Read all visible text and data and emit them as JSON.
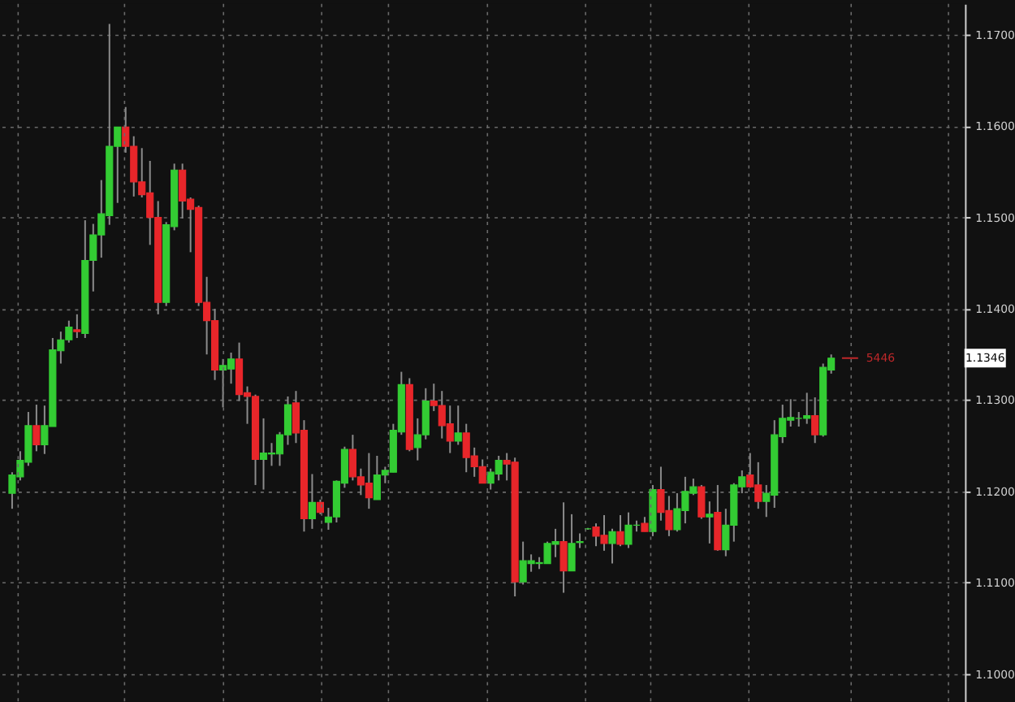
{
  "chart_data": {
    "type": "candlestick",
    "categories": [
      null,
      null,
      null,
      null,
      null,
      null,
      null,
      null,
      null,
      null,
      null,
      null,
      null,
      null,
      null,
      null,
      null,
      null,
      null,
      null,
      null,
      null,
      null,
      null,
      null,
      null,
      null,
      null,
      null,
      null,
      null,
      null,
      null,
      null,
      null,
      null,
      null,
      null,
      null,
      null,
      null,
      null,
      null,
      null,
      null,
      null,
      null,
      null,
      null,
      null,
      null,
      null,
      null,
      null,
      null,
      null,
      null,
      null,
      null,
      null,
      null,
      null,
      null,
      null,
      null,
      null,
      null,
      null,
      null,
      null,
      null,
      null,
      null,
      null,
      null,
      null,
      null,
      null,
      null,
      null,
      null,
      null,
      null,
      null,
      null,
      null,
      null,
      null,
      null,
      null,
      null,
      null,
      null,
      null,
      null,
      null,
      null,
      null,
      null,
      null,
      null,
      null,
      null,
      null,
      null,
      null,
      null,
      null,
      null,
      null,
      null,
      null,
      null,
      null,
      null,
      null,
      null
    ],
    "ohlc": [
      [
        1.1198,
        1.1221,
        1.1181,
        1.1218
      ],
      [
        1.1216,
        1.1244,
        1.1212,
        1.1234
      ],
      [
        1.1232,
        1.1287,
        1.1228,
        1.1272
      ],
      [
        1.1272,
        1.1295,
        1.1244,
        1.1251
      ],
      [
        1.1251,
        1.1294,
        1.1241,
        1.1272
      ],
      [
        1.1271,
        1.1368,
        1.1271,
        1.1355
      ],
      [
        1.1354,
        1.1375,
        1.134,
        1.1366
      ],
      [
        1.1366,
        1.1387,
        1.1363,
        1.138
      ],
      [
        1.1377,
        1.1394,
        1.1368,
        1.1375
      ],
      [
        1.1373,
        1.1497,
        1.1368,
        1.1453
      ],
      [
        1.1453,
        1.1493,
        1.1419,
        1.1481
      ],
      [
        1.1481,
        1.1541,
        1.1456,
        1.1504
      ],
      [
        1.1502,
        1.1712,
        1.1492,
        1.1578
      ],
      [
        1.1578,
        1.1599,
        1.1516,
        1.1599
      ],
      [
        1.1599,
        1.1621,
        1.1571,
        1.1578
      ],
      [
        1.1578,
        1.1589,
        1.1523,
        1.1539
      ],
      [
        1.1539,
        1.1576,
        1.1522,
        1.1525
      ],
      [
        1.1527,
        1.1562,
        1.147,
        1.15
      ],
      [
        1.15,
        1.1518,
        1.1394,
        1.1407
      ],
      [
        1.1407,
        1.1495,
        1.1403,
        1.1492
      ],
      [
        1.149,
        1.1559,
        1.1486,
        1.1552
      ],
      [
        1.1552,
        1.1559,
        1.1499,
        1.1518
      ],
      [
        1.152,
        1.1522,
        1.1462,
        1.1509
      ],
      [
        1.1511,
        1.1513,
        1.1403,
        1.1407
      ],
      [
        1.1407,
        1.1435,
        1.135,
        1.1387
      ],
      [
        1.1387,
        1.14,
        1.1322,
        1.1333
      ],
      [
        1.1333,
        1.1345,
        1.1292,
        1.1338
      ],
      [
        1.1334,
        1.1352,
        1.1318,
        1.1345
      ],
      [
        1.1345,
        1.1363,
        1.1299,
        1.1306
      ],
      [
        1.1308,
        1.1315,
        1.1274,
        1.1304
      ],
      [
        1.1304,
        1.1306,
        1.1207,
        1.1235
      ],
      [
        1.1235,
        1.128,
        1.1202,
        1.1242
      ],
      [
        1.1241,
        1.1253,
        1.1228,
        1.1242
      ],
      [
        1.1241,
        1.1265,
        1.1228,
        1.1262
      ],
      [
        1.1262,
        1.1304,
        1.1251,
        1.1295
      ],
      [
        1.1297,
        1.131,
        1.1253,
        1.1264
      ],
      [
        1.1267,
        1.1278,
        1.1156,
        1.117
      ],
      [
        1.117,
        1.1219,
        1.1159,
        1.1188
      ],
      [
        1.1188,
        1.1191,
        1.1175,
        1.1177
      ],
      [
        1.1166,
        1.1182,
        1.1158,
        1.1172
      ],
      [
        1.1172,
        1.1212,
        1.1166,
        1.1211
      ],
      [
        1.1209,
        1.1249,
        1.1204,
        1.1246
      ],
      [
        1.1246,
        1.1262,
        1.1212,
        1.1216
      ],
      [
        1.1216,
        1.1225,
        1.1196,
        1.1207
      ],
      [
        1.1209,
        1.1242,
        1.1181,
        1.1193
      ],
      [
        1.1191,
        1.1239,
        1.1191,
        1.1218
      ],
      [
        1.1218,
        1.1227,
        1.1209,
        1.1223
      ],
      [
        1.1221,
        1.1274,
        1.1221,
        1.1267
      ],
      [
        1.1265,
        1.1331,
        1.1262,
        1.1317
      ],
      [
        1.1317,
        1.1324,
        1.1244,
        1.1246
      ],
      [
        1.1248,
        1.128,
        1.1234,
        1.1262
      ],
      [
        1.1262,
        1.1313,
        1.1257,
        1.1299
      ],
      [
        1.1299,
        1.1318,
        1.1288,
        1.1294
      ],
      [
        1.1294,
        1.131,
        1.1258,
        1.1272
      ],
      [
        1.1274,
        1.1294,
        1.1242,
        1.1255
      ],
      [
        1.1255,
        1.1294,
        1.1251,
        1.1264
      ],
      [
        1.1264,
        1.1274,
        1.1221,
        1.1237
      ],
      [
        1.1239,
        1.1248,
        1.1216,
        1.1227
      ],
      [
        1.1227,
        1.1235,
        1.1209,
        1.1209
      ],
      [
        1.1209,
        1.1225,
        1.1202,
        1.1221
      ],
      [
        1.1219,
        1.1239,
        1.1212,
        1.1234
      ],
      [
        1.1234,
        1.1242,
        1.1212,
        1.123
      ],
      [
        1.1232,
        1.1237,
        1.1085,
        1.1101
      ],
      [
        1.1101,
        1.1145,
        1.1098,
        1.1124
      ],
      [
        1.1121,
        1.1131,
        1.1112,
        1.1124
      ],
      [
        1.1121,
        1.1128,
        1.1115,
        1.1122
      ],
      [
        1.1121,
        1.1145,
        1.1121,
        1.1143
      ],
      [
        1.1142,
        1.1159,
        1.1128,
        1.1145
      ],
      [
        1.1145,
        1.1188,
        1.1089,
        1.1113
      ],
      [
        1.1113,
        1.1175,
        1.1113,
        1.1143
      ],
      [
        1.1144,
        1.1154,
        1.1138,
        1.1145
      ],
      [
        1.1159,
        1.116,
        1.1158,
        1.1159
      ],
      [
        1.1161,
        1.1165,
        1.114,
        1.1151
      ],
      [
        1.1152,
        1.1174,
        1.1135,
        1.1143
      ],
      [
        1.1143,
        1.1159,
        1.1121,
        1.1156
      ],
      [
        1.1156,
        1.1174,
        1.114,
        1.1142
      ],
      [
        1.1142,
        1.1177,
        1.1138,
        1.1163
      ],
      [
        1.1163,
        1.1168,
        1.1156,
        1.1163
      ],
      [
        1.1165,
        1.1172,
        1.1156,
        1.1156
      ],
      [
        1.1156,
        1.1207,
        1.1151,
        1.1202
      ],
      [
        1.1202,
        1.1227,
        1.1168,
        1.1177
      ],
      [
        1.1179,
        1.1195,
        1.1151,
        1.1158
      ],
      [
        1.1158,
        1.1198,
        1.1156,
        1.1181
      ],
      [
        1.1179,
        1.1216,
        1.1165,
        1.12
      ],
      [
        1.1198,
        1.1214,
        1.1196,
        1.1205
      ],
      [
        1.1205,
        1.1207,
        1.117,
        1.1172
      ],
      [
        1.1172,
        1.1189,
        1.1143,
        1.1175
      ],
      [
        1.1177,
        1.1207,
        1.1135,
        1.1136
      ],
      [
        1.1136,
        1.1181,
        1.1129,
        1.1163
      ],
      [
        1.1163,
        1.1209,
        1.1145,
        1.1207
      ],
      [
        1.1205,
        1.1223,
        1.1198,
        1.1216
      ],
      [
        1.1218,
        1.1242,
        1.1204,
        1.1205
      ],
      [
        1.1207,
        1.1232,
        1.1181,
        1.1189
      ],
      [
        1.1189,
        1.1207,
        1.1172,
        1.1198
      ],
      [
        1.1196,
        1.1278,
        1.1182,
        1.1262
      ],
      [
        1.126,
        1.1295,
        1.1253,
        1.128
      ],
      [
        1.1278,
        1.1301,
        1.1271,
        1.1281
      ],
      [
        1.128,
        1.1287,
        1.1271,
        1.128
      ],
      [
        1.128,
        1.1308,
        1.1274,
        1.1283
      ],
      [
        1.1283,
        1.1303,
        1.1253,
        1.1262
      ],
      [
        1.1262,
        1.134,
        1.126,
        1.1336
      ],
      [
        1.1333,
        1.135,
        1.1329,
        1.1346
      ],
      null,
      null,
      null,
      null,
      null,
      null,
      null,
      null,
      null,
      null,
      null,
      null,
      null,
      null,
      null
    ],
    "colors": [
      "#33cc33",
      "#33cc33",
      "#33cc33",
      "#e8262a",
      "#33cc33",
      "#33cc33",
      "#33cc33",
      "#33cc33",
      "#e8262a",
      "#33cc33",
      "#33cc33",
      "#33cc33",
      "#33cc33",
      "#33cc33",
      "#e8262a",
      "#e8262a",
      "#e8262a",
      "#e8262a",
      "#e8262a",
      "#33cc33",
      "#33cc33",
      "#e8262a",
      "#e8262a",
      "#e8262a",
      "#e8262a",
      "#e8262a",
      "#33cc33",
      "#33cc33",
      "#e8262a",
      "#e8262a",
      "#e8262a",
      "#33cc33",
      "#33cc33",
      "#33cc33",
      "#33cc33",
      "#e8262a",
      "#e8262a",
      "#33cc33",
      "#e8262a",
      "#33cc33",
      "#33cc33",
      "#33cc33",
      "#e8262a",
      "#e8262a",
      "#e8262a",
      "#33cc33",
      "#33cc33",
      "#33cc33",
      "#33cc33",
      "#e8262a",
      "#33cc33",
      "#33cc33",
      "#e8262a",
      "#e8262a",
      "#e8262a",
      "#33cc33",
      "#e8262a",
      "#e8262a",
      "#e8262a",
      "#33cc33",
      "#33cc33",
      "#e8262a",
      "#e8262a",
      "#33cc33",
      "#33cc33",
      "#33cc33",
      "#33cc33",
      "#33cc33",
      "#e8262a",
      "#33cc33",
      "#33cc33",
      "#33cc33",
      "#e8262a",
      "#e8262a",
      "#33cc33",
      "#e8262a",
      "#33cc33",
      "#33cc33",
      "#e8262a",
      "#33cc33",
      "#e8262a",
      "#e8262a",
      "#33cc33",
      "#33cc33",
      "#33cc33",
      "#e8262a",
      "#33cc33",
      "#e8262a",
      "#33cc33",
      "#33cc33",
      "#33cc33",
      "#e8262a",
      "#e8262a",
      "#33cc33",
      "#33cc33",
      "#33cc33",
      "#33cc33",
      "#33cc33",
      "#33cc33",
      "#e8262a",
      "#33cc33",
      "#33cc33",
      null,
      null,
      null,
      null,
      null,
      null,
      null,
      null,
      null,
      null,
      null,
      null,
      null,
      null,
      null
    ],
    "ylim": [
      1.097,
      1.1734
    ],
    "yticks": [
      {
        "value": 1.1,
        "label": "1.1000"
      },
      {
        "value": 1.11,
        "label": "1.1100"
      },
      {
        "value": 1.12,
        "label": "1.1200"
      },
      {
        "value": 1.13,
        "label": "1.1300"
      },
      {
        "value": 1.14,
        "label": "1.1400"
      },
      {
        "value": 1.15,
        "label": "1.1500"
      },
      {
        "value": 1.16,
        "label": "1.1600"
      },
      {
        "value": 1.17,
        "label": "1.1700"
      }
    ],
    "annotations": [
      {
        "text": "1.1346",
        "y": 1.1346
      },
      "5446"
    ],
    "grid": true,
    "tick_labels": "y"
  }
}
